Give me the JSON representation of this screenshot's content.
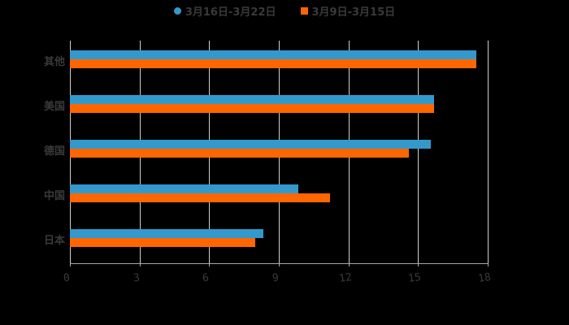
{
  "chart_data": {
    "type": "bar",
    "orientation": "horizontal",
    "title": "",
    "categories": [
      "其他",
      "美国",
      "德国",
      "中国",
      "日本"
    ],
    "series": [
      {
        "name": "3月16日-3月22日",
        "color": "#3399CC",
        "values": [
          17.5,
          15.7,
          15.55,
          9.85,
          8.35
        ]
      },
      {
        "name": "3月9日-3月15日",
        "color": "#FF6600",
        "values": [
          17.5,
          15.7,
          14.6,
          11.2,
          8.0
        ]
      }
    ],
    "xlabel": "",
    "ylabel": "",
    "xlim": [
      0,
      18
    ],
    "xticks": [
      0,
      3,
      6,
      9,
      12,
      15,
      18
    ],
    "grid": true,
    "legend_position": "top"
  },
  "legend": [
    {
      "label": "3月16日-3月22日",
      "color": "#3399CC",
      "shape": "circle"
    },
    {
      "label": "3月9日-3月15日",
      "color": "#FF6600",
      "shape": "square"
    }
  ],
  "colors": {
    "background": "#000000",
    "text": "#3a3a3a",
    "grid": "#d0d0d0"
  }
}
